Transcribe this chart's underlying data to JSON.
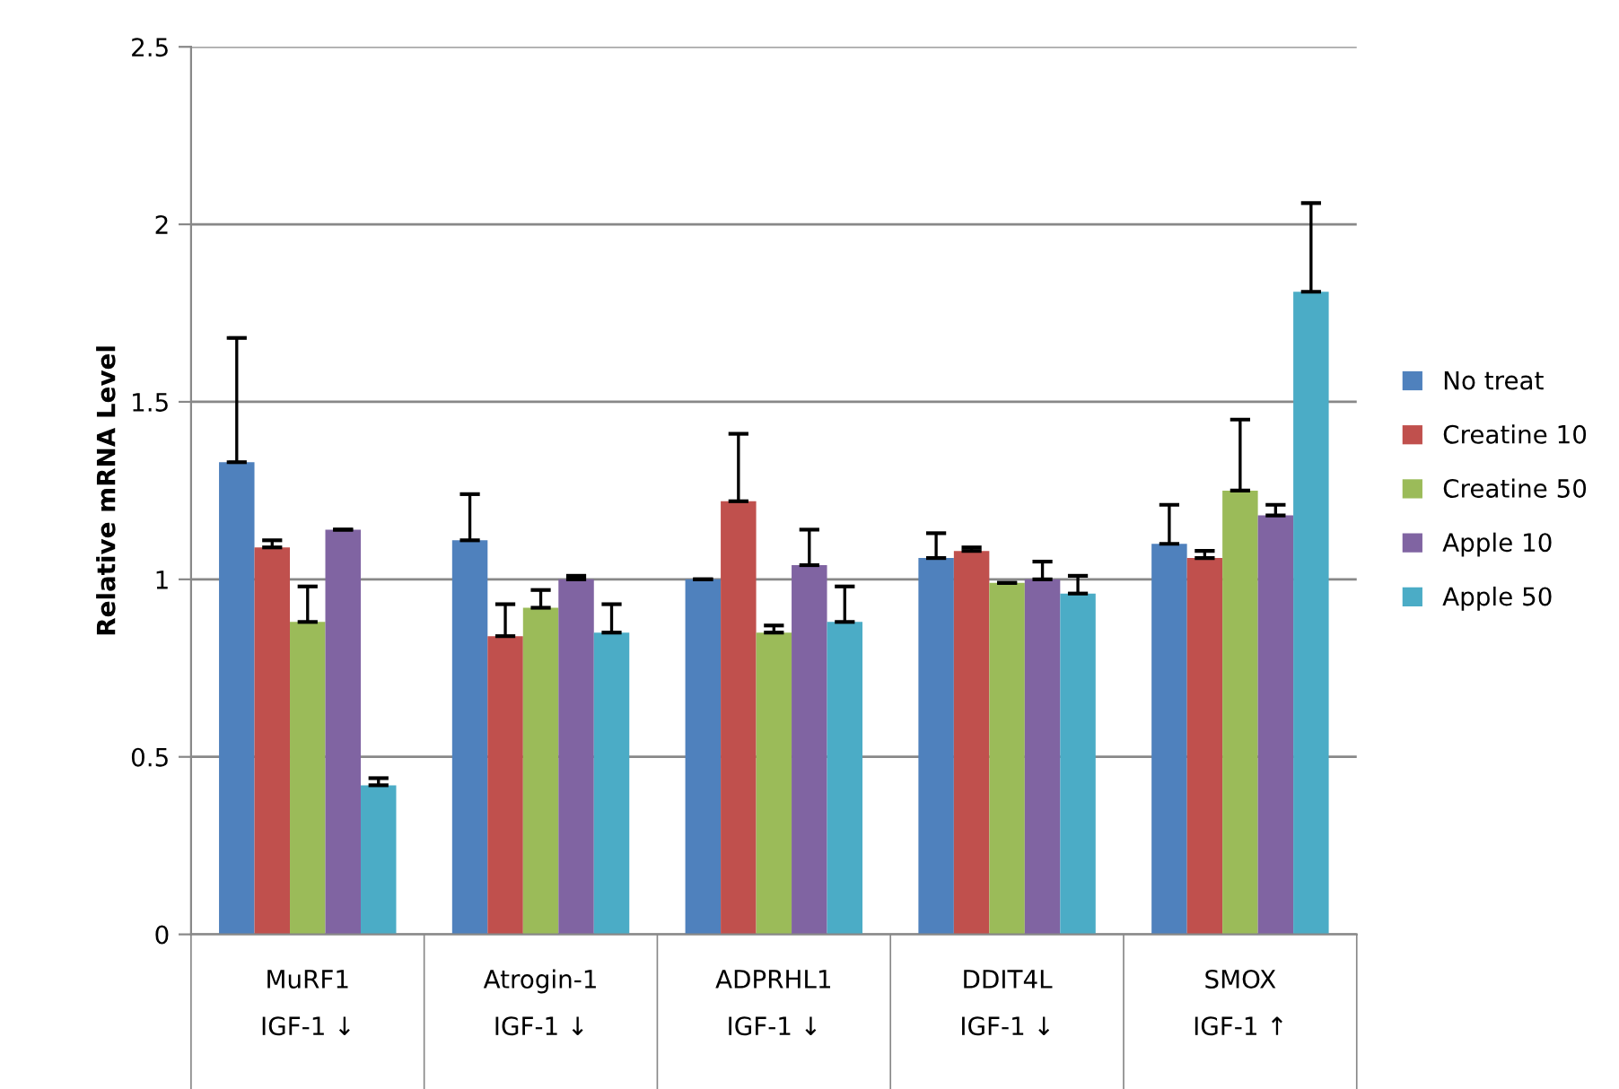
{
  "chart_data": {
    "type": "bar",
    "ylabel": "Relative mRNA Level",
    "categories": [
      "MuRF1\nIGF-1 ↓",
      "Atrogin-1\nIGF-1 ↓",
      "ADPRHL1\nIGF-1 ↓",
      "DDIT4L\nIGF-1 ↓",
      "SMOX\nIGF-1 ↑"
    ],
    "series": [
      {
        "name": "No treat",
        "color": "#4f81bd",
        "values": [
          1.33,
          1.11,
          1.0,
          1.06,
          1.1
        ],
        "errors": [
          [
            1.33,
            1.68
          ],
          [
            1.11,
            1.24
          ],
          [
            1.0,
            1.0
          ],
          [
            1.06,
            1.13
          ],
          [
            1.1,
            1.21
          ]
        ]
      },
      {
        "name": "Creatine 10",
        "color": "#c0504d",
        "values": [
          1.09,
          0.84,
          1.22,
          1.08,
          1.06
        ],
        "errors": [
          [
            1.09,
            1.11
          ],
          [
            0.84,
            0.93
          ],
          [
            1.22,
            1.41
          ],
          [
            1.08,
            1.09
          ],
          [
            1.06,
            1.08
          ]
        ]
      },
      {
        "name": "Creatine 50",
        "color": "#9bbb59",
        "values": [
          0.88,
          0.92,
          0.85,
          0.99,
          1.25
        ],
        "errors": [
          [
            0.88,
            0.98
          ],
          [
            0.92,
            0.97
          ],
          [
            0.85,
            0.87
          ],
          [
            0.99,
            0.99
          ],
          [
            1.25,
            1.45
          ]
        ]
      },
      {
        "name": "Apple 10",
        "color": "#8064a2",
        "values": [
          1.14,
          1.0,
          1.04,
          1.0,
          1.18
        ],
        "errors": [
          [
            1.14,
            1.14
          ],
          [
            1.0,
            1.01
          ],
          [
            1.04,
            1.14
          ],
          [
            1.0,
            1.05
          ],
          [
            1.18,
            1.21
          ]
        ]
      },
      {
        "name": "Apple 50",
        "color": "#4bacc6",
        "values": [
          0.42,
          0.85,
          0.88,
          0.96,
          1.81
        ],
        "errors": [
          [
            0.42,
            0.44
          ],
          [
            0.85,
            0.93
          ],
          [
            0.88,
            0.98
          ],
          [
            0.96,
            1.01
          ],
          [
            1.81,
            2.06
          ]
        ]
      }
    ],
    "ylim": [
      0,
      2.5
    ],
    "yticks": [
      0,
      0.5,
      1,
      1.5,
      2,
      2.5
    ],
    "grid": "y",
    "legend": "right"
  }
}
